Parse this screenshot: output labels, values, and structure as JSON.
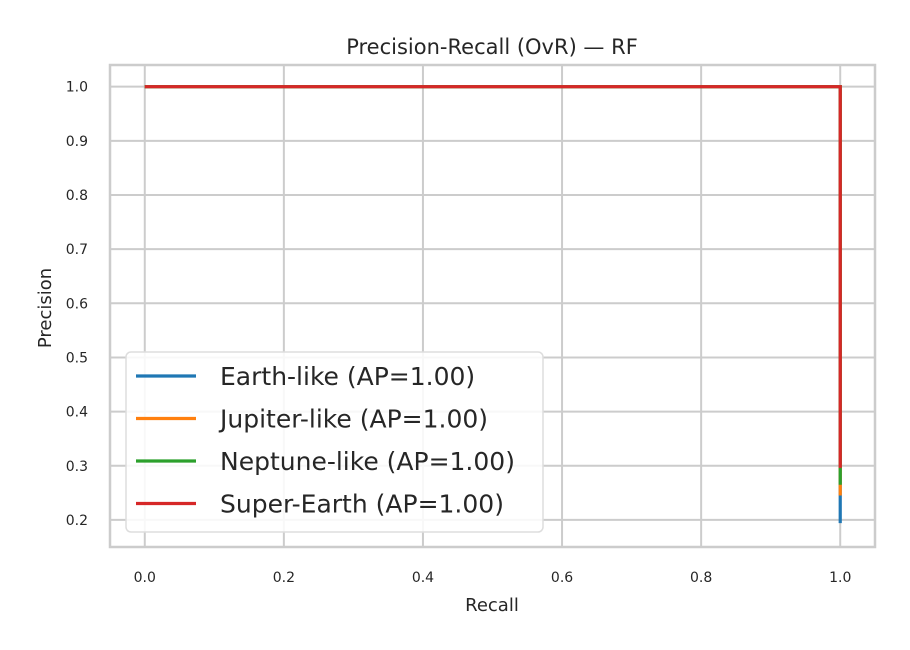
{
  "chart_data": {
    "type": "line",
    "title": "Precision-Recall (OvR) — RF",
    "xlabel": "Recall",
    "ylabel": "Precision",
    "xlim": [
      -0.05,
      1.05
    ],
    "ylim": [
      0.15,
      1.04
    ],
    "xticks": [
      "0.0",
      "0.2",
      "0.4",
      "0.6",
      "0.8",
      "1.0"
    ],
    "yticks": [
      "0.2",
      "0.3",
      "0.4",
      "0.5",
      "0.6",
      "0.7",
      "0.8",
      "0.9",
      "1.0"
    ],
    "grid": true,
    "legend_position": "lower left",
    "series": [
      {
        "name": "Earth-like (AP=1.00)",
        "color": "#1f77b4",
        "x": [
          0.0,
          1.0,
          1.0
        ],
        "y": [
          1.0,
          1.0,
          0.194
        ]
      },
      {
        "name": "Jupiter-like (AP=1.00)",
        "color": "#ff7f0e",
        "x": [
          0.0,
          1.0,
          1.0
        ],
        "y": [
          1.0,
          1.0,
          0.245
        ]
      },
      {
        "name": "Neptune-like (AP=1.00)",
        "color": "#2ca02c",
        "x": [
          0.0,
          1.0,
          1.0
        ],
        "y": [
          1.0,
          1.0,
          0.265
        ]
      },
      {
        "name": "Super-Earth (AP=1.00)",
        "color": "#d62728",
        "x": [
          0.0,
          1.0,
          1.0
        ],
        "y": [
          1.0,
          1.0,
          0.296
        ]
      }
    ]
  }
}
